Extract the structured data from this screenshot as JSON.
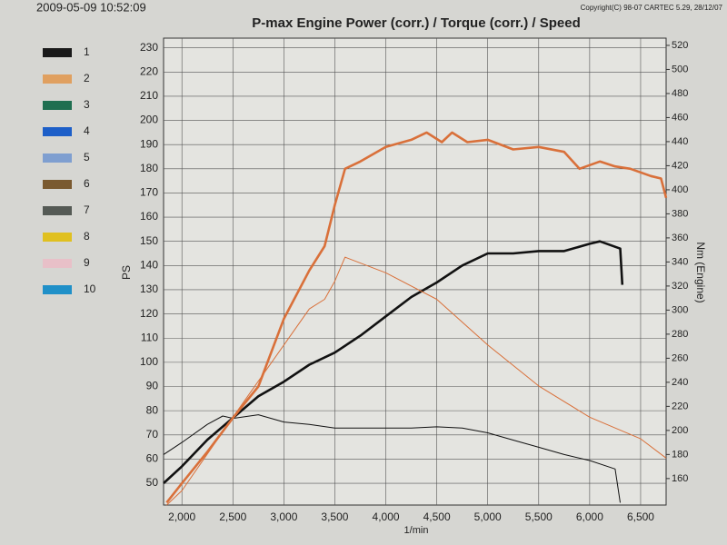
{
  "header": {
    "timestamp": "2009-05-09 10:52:09",
    "copyright": "Copyright(C) 98-07 CARTEC 5.29, 28/12/07"
  },
  "legend": [
    {
      "label": "1",
      "color": "#1a1a1a"
    },
    {
      "label": "2",
      "color": "#e0a060"
    },
    {
      "label": "3",
      "color": "#1f6e50"
    },
    {
      "label": "4",
      "color": "#1d5fc8"
    },
    {
      "label": "5",
      "color": "#7f9fd0"
    },
    {
      "label": "6",
      "color": "#7a5a30"
    },
    {
      "label": "7",
      "color": "#555a55"
    },
    {
      "label": "8",
      "color": "#e0c020"
    },
    {
      "label": "9",
      "color": "#e8c0c8"
    },
    {
      "label": "10",
      "color": "#2090c8"
    }
  ],
  "chart_data": {
    "type": "line",
    "title": "P-max Engine Power (corr.) / Torque (corr.) / Speed",
    "x_label": "1/min",
    "y_label": "PS",
    "y2_label": "Nm (Engine)",
    "xlim": [
      1820,
      6750
    ],
    "xticks": [
      {
        "value": 2000,
        "label": "2,000"
      },
      {
        "value": 2500,
        "label": "2,500"
      },
      {
        "value": 3000,
        "label": "3,000"
      },
      {
        "value": 3500,
        "label": "3,500"
      },
      {
        "value": 4000,
        "label": "4,000"
      },
      {
        "value": 4500,
        "label": "4,500"
      },
      {
        "value": 5000,
        "label": "5,000"
      },
      {
        "value": 5500,
        "label": "5,500"
      },
      {
        "value": 6000,
        "label": "6,000"
      },
      {
        "value": 6500,
        "label": "6,500"
      }
    ],
    "ylim": [
      41,
      234
    ],
    "yticks": [
      50,
      60,
      70,
      80,
      90,
      100,
      110,
      120,
      130,
      140,
      150,
      160,
      170,
      180,
      190,
      200,
      210,
      220,
      230
    ],
    "y2lim": [
      138,
      526
    ],
    "y2ticks": [
      160,
      180,
      200,
      220,
      240,
      260,
      280,
      300,
      320,
      340,
      360,
      380,
      400,
      420,
      440,
      460,
      480,
      500,
      520
    ],
    "grid": true,
    "series": [
      {
        "color": "#111111",
        "line_width": 2.6,
        "x": [
          1820,
          2000,
          2250,
          2500,
          2750,
          3000,
          3250,
          3500,
          3750,
          4000,
          4250,
          4500,
          4750,
          5000,
          5250,
          5500,
          5750,
          6000,
          6100,
          6300,
          6320
        ],
        "values": [
          50,
          57,
          68,
          77,
          86,
          92,
          99,
          104,
          111,
          119,
          127,
          133,
          140,
          145,
          145,
          146,
          146,
          149,
          150,
          147,
          132
        ]
      },
      {
        "color": "#111111",
        "line_width": 1,
        "axis": "y2",
        "x": [
          1820,
          2000,
          2250,
          2400,
          2500,
          2750,
          3000,
          3250,
          3500,
          3750,
          4000,
          4250,
          4500,
          4750,
          5000,
          5250,
          5500,
          5750,
          6000,
          6250,
          6300
        ],
        "values": [
          180,
          190,
          205,
          212,
          210,
          213,
          207,
          205,
          202,
          202,
          202,
          202,
          203,
          202,
          198,
          192,
          186,
          180,
          175,
          168,
          140
        ]
      },
      {
        "color": "#d9703a",
        "line_width": 2.6,
        "x": [
          1850,
          2000,
          2250,
          2500,
          2750,
          3000,
          3250,
          3400,
          3500,
          3600,
          3750,
          4000,
          4250,
          4400,
          4550,
          4650,
          4800,
          5000,
          5250,
          5500,
          5750,
          5900,
          6100,
          6250,
          6400,
          6600,
          6700,
          6750
        ],
        "values": [
          42,
          50,
          63,
          77,
          90,
          118,
          138,
          148,
          165,
          180,
          183,
          189,
          192,
          195,
          191,
          195,
          191,
          192,
          188,
          189,
          187,
          180,
          183,
          181,
          180,
          177,
          176,
          168
        ]
      },
      {
        "color": "#d9703a",
        "line_width": 1,
        "axis": "y2",
        "x": [
          1850,
          2000,
          2500,
          3000,
          3250,
          3400,
          3500,
          3600,
          4000,
          4500,
          5000,
          5500,
          6000,
          6500,
          6750
        ],
        "values": [
          138,
          150,
          211,
          271,
          301,
          309,
          324,
          344,
          331,
          309,
          271,
          237,
          211,
          193,
          177
        ]
      }
    ]
  }
}
